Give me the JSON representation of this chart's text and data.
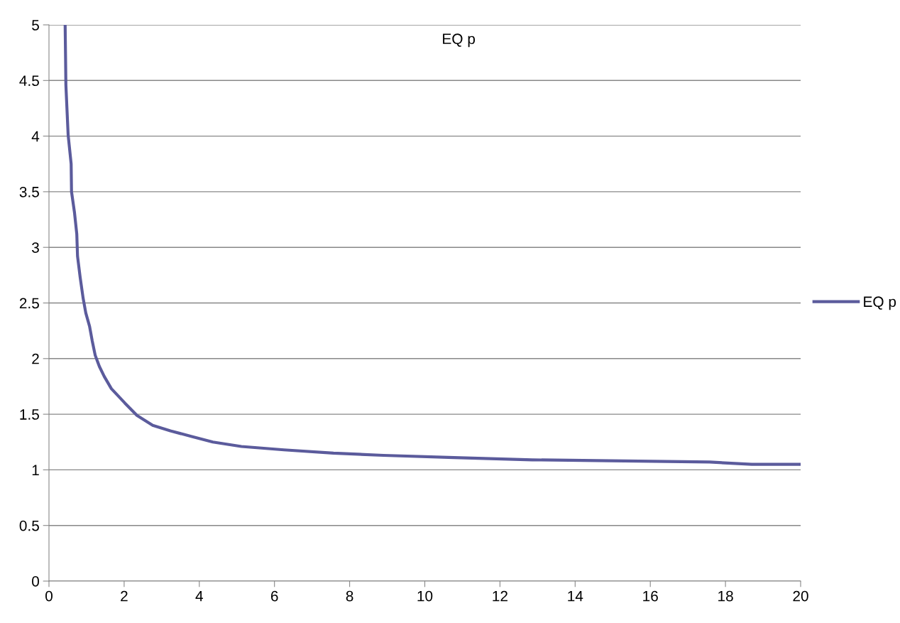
{
  "chart_data": {
    "type": "line",
    "title": "EQ p",
    "series": [
      {
        "name": "EQ p",
        "color": "#5b5b9c",
        "x": [
          0.43,
          0.44,
          0.45,
          0.51,
          0.59,
          0.6,
          0.68,
          0.74,
          0.76,
          0.83,
          0.91,
          0.98,
          1.08,
          1.15,
          1.23,
          1.34,
          1.47,
          1.66,
          2.02,
          2.34,
          2.76,
          3.23,
          3.8,
          4.36,
          5.12,
          6.25,
          7.57,
          8.9,
          10.78,
          12.86,
          15.32,
          17.58,
          18.7,
          20
        ],
        "values": [
          5.0,
          4.74,
          4.46,
          4.01,
          3.75,
          3.5,
          3.31,
          3.12,
          2.92,
          2.73,
          2.54,
          2.41,
          2.29,
          2.16,
          2.03,
          1.93,
          1.84,
          1.73,
          1.6,
          1.49,
          1.4,
          1.35,
          1.3,
          1.25,
          1.21,
          1.18,
          1.15,
          1.13,
          1.11,
          1.09,
          1.08,
          1.07,
          1.05,
          1.05
        ]
      }
    ],
    "xlim": [
      0,
      20
    ],
    "xticks": [
      0,
      2,
      4,
      6,
      8,
      10,
      12,
      14,
      16,
      18,
      20
    ],
    "ylim": [
      0,
      5
    ],
    "yticks": [
      0,
      0.5,
      1,
      1.5,
      2,
      2.5,
      3,
      3.5,
      4,
      4.5,
      5
    ],
    "grid": "y",
    "legend": "right",
    "marker": "none",
    "line_style": "solid"
  }
}
